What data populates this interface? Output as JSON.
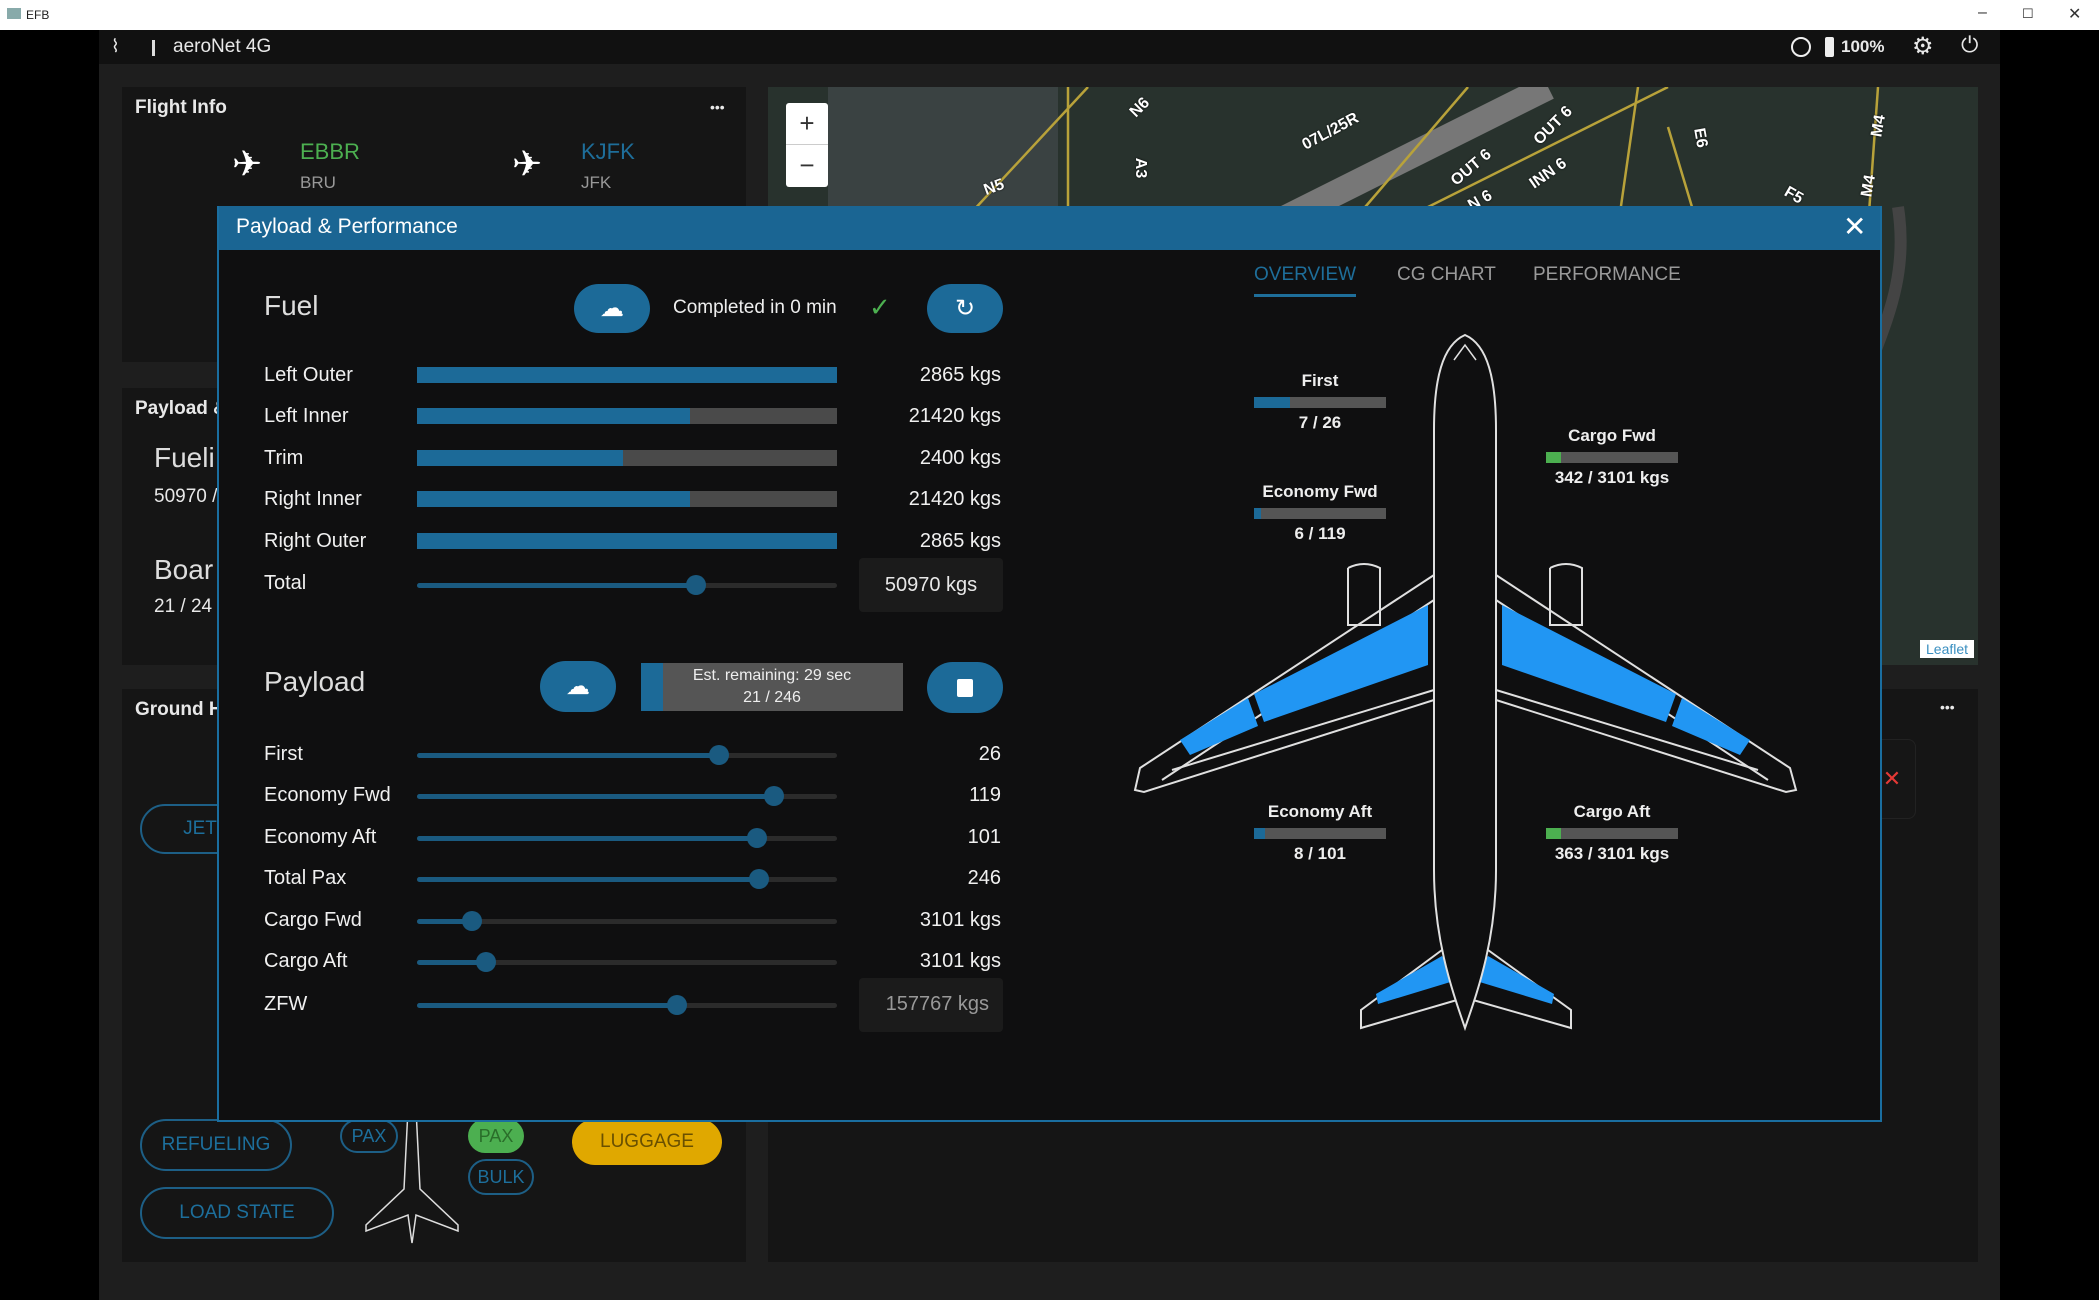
{
  "window": {
    "title": "EFB",
    "min": "–",
    "max": "☐",
    "close": "✕"
  },
  "status": {
    "network": "aeroNet 4G",
    "battery": "100%"
  },
  "flight_info": {
    "title": "Flight Info",
    "menu": "•••",
    "origin_icao": "EBBR",
    "origin_iata": "BRU",
    "dest_icao": "KJFK",
    "dest_iata": "JFK"
  },
  "map": {
    "zoom_in": "+",
    "zoom_out": "−",
    "attribution": "Leaflet",
    "labels": [
      "N6",
      "A3",
      "N5",
      "07L/25R",
      "OUT 6",
      "OUT 6",
      "INN 6",
      "N 6",
      "E6",
      "F5",
      "M4",
      "M4"
    ]
  },
  "payload_card": {
    "title": "Payload &",
    "fuel_label": "Fueli",
    "fuel_value": "50970 /",
    "boarding_label": "Boar",
    "boarding_value": "21 / 24"
  },
  "ground": {
    "title": "Ground H",
    "menu": "•••",
    "jetway": "JET",
    "refueling": "REFUELING",
    "pax1": "PAX",
    "pax2": "PAX",
    "bulk": "BULK",
    "luggage": "LUGGAGE",
    "load_state": "LOAD STATE",
    "close": "✕"
  },
  "modal": {
    "title": "Payload & Performance",
    "close": "✕",
    "tabs": [
      {
        "label": "OVERVIEW",
        "active": true
      },
      {
        "label": "CG CHART"
      },
      {
        "label": "PERFORMANCE"
      }
    ],
    "fuel": {
      "title": "Fuel",
      "status": "Completed in 0 min",
      "check": "✓",
      "rows": [
        {
          "label": "Left Outer",
          "value": "2865 kgs",
          "fill": 1.0
        },
        {
          "label": "Left Inner",
          "value": "21420 kgs",
          "fill": 0.65
        },
        {
          "label": "Trim",
          "value": "2400 kgs",
          "fill": 0.49
        },
        {
          "label": "Right Inner",
          "value": "21420 kgs",
          "fill": 0.65
        },
        {
          "label": "Right Outer",
          "value": "2865 kgs",
          "fill": 1.0
        }
      ],
      "total": {
        "label": "Total",
        "value": "50970 kgs",
        "slider": 0.665
      }
    },
    "payload": {
      "title": "Payload",
      "progress_line1": "Est. remaining: 29 sec",
      "progress_line2": "21 / 246",
      "progress": 0.085,
      "rows": [
        {
          "label": "First",
          "value": "26",
          "slider": 0.72
        },
        {
          "label": "Economy Fwd",
          "value": "119",
          "slider": 0.85
        },
        {
          "label": "Economy Aft",
          "value": "101",
          "slider": 0.81
        },
        {
          "label": "Total Pax",
          "value": "246",
          "slider": 0.815
        },
        {
          "label": "Cargo Fwd",
          "value": "3101 kgs",
          "slider": 0.13
        },
        {
          "label": "Cargo Aft",
          "value": "3101 kgs",
          "slider": 0.165
        },
        {
          "label": "ZFW",
          "value": "157767 kgs",
          "slider": 0.62
        }
      ]
    },
    "compartments": [
      {
        "label": "First",
        "value": "7 / 26",
        "fill": 0.27,
        "color": "#1c6a98"
      },
      {
        "label": "Economy Fwd",
        "value": "6 / 119",
        "fill": 0.05,
        "color": "#1c6a98"
      },
      {
        "label": "Economy Aft",
        "value": "8 / 101",
        "fill": 0.08,
        "color": "#1c6a98"
      },
      {
        "label": "Cargo Fwd",
        "value": "342 / 3101 kgs",
        "fill": 0.11,
        "color": "#4caf50"
      },
      {
        "label": "Cargo Aft",
        "value": "363 / 3101 kgs",
        "fill": 0.117,
        "color": "#4caf50"
      }
    ]
  },
  "colors": {
    "accent": "#1c6a98",
    "fuel_tank": "#2196f3",
    "origin": "#4caf50",
    "dest": "#1e6e9a",
    "luggage": "#e0a800"
  }
}
